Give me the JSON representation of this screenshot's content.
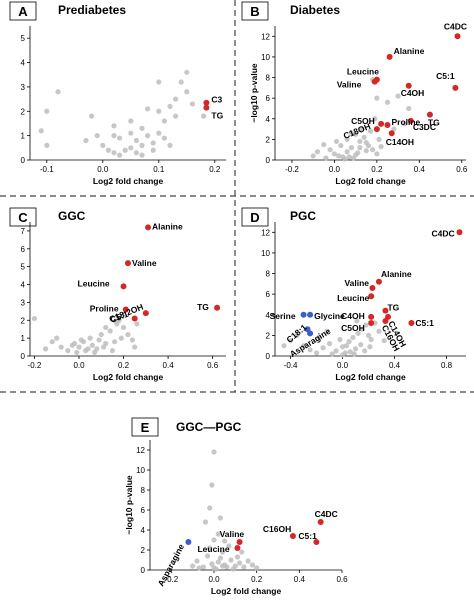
{
  "chart_data": [
    {
      "letter": "A",
      "title": "Prediabetes",
      "type": "scatter",
      "xlabel": "Log2 fold change",
      "xticks": [
        -0.1,
        0.0,
        0.1,
        0.2
      ],
      "yticks": [
        0,
        1,
        2,
        3,
        4,
        5
      ],
      "xlim": [
        -0.13,
        0.22
      ],
      "ylim": [
        0,
        5.5
      ],
      "colors": {
        "background": "#bdbdbd",
        "up": "#d62728"
      },
      "background_points": [
        [
          -0.08,
          2.8
        ],
        [
          -0.1,
          2.0
        ],
        [
          -0.11,
          1.2
        ],
        [
          -0.1,
          0.6
        ],
        [
          -0.02,
          1.8
        ],
        [
          0.02,
          1.4
        ],
        [
          -0.03,
          0.8
        ],
        [
          0.0,
          0.6
        ],
        [
          0.01,
          0.4
        ],
        [
          0.02,
          0.3
        ],
        [
          0.03,
          0.2
        ],
        [
          0.04,
          0.4
        ],
        [
          0.05,
          0.5
        ],
        [
          0.06,
          0.3
        ],
        [
          0.07,
          0.6
        ],
        [
          0.03,
          0.9
        ],
        [
          0.05,
          1.1
        ],
        [
          0.06,
          0.8
        ],
        [
          0.07,
          1.3
        ],
        [
          0.08,
          1.0
        ],
        [
          0.09,
          0.7
        ],
        [
          0.1,
          1.1
        ],
        [
          0.11,
          1.6
        ],
        [
          0.1,
          2.0
        ],
        [
          0.12,
          2.2
        ],
        [
          0.13,
          2.5
        ],
        [
          0.14,
          3.2
        ],
        [
          0.15,
          2.8
        ],
        [
          0.16,
          2.3
        ],
        [
          0.12,
          0.6
        ],
        [
          0.1,
          3.2
        ],
        [
          0.02,
          1.0
        ],
        [
          -0.01,
          1.0
        ],
        [
          0.05,
          1.6
        ],
        [
          0.08,
          2.1
        ],
        [
          0.13,
          1.8
        ],
        [
          0.11,
          0.9
        ],
        [
          0.07,
          0.2
        ],
        [
          0.09,
          0.4
        ],
        [
          0.15,
          3.6
        ],
        [
          0.18,
          1.8
        ]
      ],
      "highlights": [
        {
          "label": "C3",
          "x": 0.185,
          "y": 2.35,
          "color": "up"
        },
        {
          "label": "TG",
          "x": 0.185,
          "y": 2.15,
          "color": "up"
        }
      ]
    },
    {
      "letter": "B",
      "title": "Diabetes",
      "type": "scatter",
      "xlabel": "Log2 fold change",
      "ylabel": "−log10 p-value",
      "xticks": [
        -0.2,
        0.0,
        0.2,
        0.4,
        0.6
      ],
      "yticks": [
        0,
        2,
        4,
        6,
        8,
        10,
        12
      ],
      "xlim": [
        -0.28,
        0.62
      ],
      "ylim": [
        0,
        13
      ],
      "colors": {
        "background": "#bdbdbd",
        "up": "#d62728"
      },
      "background_points": [
        [
          -0.05,
          1.5
        ],
        [
          -0.02,
          1.0
        ],
        [
          0.0,
          0.6
        ],
        [
          0.02,
          0.4
        ],
        [
          0.04,
          0.3
        ],
        [
          0.06,
          0.8
        ],
        [
          0.08,
          1.2
        ],
        [
          0.1,
          0.5
        ],
        [
          0.12,
          1.8
        ],
        [
          0.14,
          2.2
        ],
        [
          0.1,
          2.5
        ],
        [
          0.06,
          2.0
        ],
        [
          0.03,
          1.4
        ],
        [
          0.15,
          0.9
        ],
        [
          0.16,
          1.4
        ],
        [
          0.18,
          1.0
        ],
        [
          0.2,
          0.6
        ],
        [
          0.22,
          1.3
        ],
        [
          0.13,
          3.0
        ],
        [
          0.2,
          6.0
        ],
        [
          0.25,
          5.6
        ],
        [
          0.3,
          6.2
        ],
        [
          0.35,
          5.0
        ],
        [
          0.28,
          3.0
        ],
        [
          0.05,
          0.1
        ],
        [
          0.07,
          0.3
        ],
        [
          0.09,
          0.2
        ],
        [
          0.11,
          0.7
        ],
        [
          -0.1,
          0.4
        ],
        [
          -0.08,
          0.8
        ],
        [
          0.17,
          2.8
        ],
        [
          0.21,
          2.0
        ],
        [
          0.19,
          4.0
        ],
        [
          0.12,
          1.2
        ],
        [
          0.01,
          1.8
        ],
        [
          0.15,
          1.7
        ],
        [
          0.33,
          3.5
        ],
        [
          0.18,
          7.8
        ],
        [
          0.08,
          2.6
        ],
        [
          -0.04,
          0.2
        ]
      ],
      "highlights": [
        {
          "label": "C4DC",
          "x": 0.58,
          "y": 12.0,
          "color": "up"
        },
        {
          "label": "Alanine",
          "x": 0.26,
          "y": 10.0,
          "color": "up"
        },
        {
          "label": "C5:1",
          "x": 0.57,
          "y": 7.0,
          "color": "up"
        },
        {
          "label": "Leucine",
          "x": 0.2,
          "y": 7.8,
          "color": "up"
        },
        {
          "label": "Valine",
          "x": 0.19,
          "y": 7.6,
          "color": "up"
        },
        {
          "label": "C4OH",
          "x": 0.35,
          "y": 7.2,
          "color": "up"
        },
        {
          "label": "TG",
          "x": 0.45,
          "y": 4.4,
          "color": "up"
        },
        {
          "label": "C3DC",
          "x": 0.36,
          "y": 3.8,
          "color": "up"
        },
        {
          "label": "C5OH",
          "x": 0.22,
          "y": 3.5,
          "color": "up"
        },
        {
          "label": "Proline",
          "x": 0.25,
          "y": 3.4,
          "color": "up"
        },
        {
          "label": "C18OH",
          "x": 0.2,
          "y": 3.0,
          "color": "up"
        },
        {
          "label": "C14OH",
          "x": 0.27,
          "y": 2.6,
          "color": "up"
        }
      ]
    },
    {
      "letter": "C",
      "title": "GGC",
      "type": "scatter",
      "xlabel": "Log2 fold change",
      "xticks": [
        -0.2,
        0.0,
        0.2,
        0.4,
        0.6
      ],
      "yticks": [
        0,
        1,
        2,
        3,
        4,
        5,
        6,
        7
      ],
      "xlim": [
        -0.22,
        0.66
      ],
      "ylim": [
        0,
        7.5
      ],
      "colors": {
        "background": "#bdbdbd",
        "up": "#d62728"
      },
      "background_points": [
        [
          -0.15,
          0.4
        ],
        [
          -0.12,
          0.8
        ],
        [
          -0.1,
          1.0
        ],
        [
          -0.08,
          0.5
        ],
        [
          -0.05,
          0.3
        ],
        [
          -0.03,
          0.6
        ],
        [
          -0.01,
          0.2
        ],
        [
          0.0,
          0.5
        ],
        [
          0.02,
          0.8
        ],
        [
          0.03,
          0.3
        ],
        [
          0.05,
          1.0
        ],
        [
          0.06,
          0.6
        ],
        [
          0.08,
          0.4
        ],
        [
          0.1,
          1.2
        ],
        [
          0.12,
          0.7
        ],
        [
          0.14,
          1.4
        ],
        [
          0.15,
          0.3
        ],
        [
          0.17,
          1.8
        ],
        [
          0.18,
          2.0
        ],
        [
          0.2,
          1.6
        ],
        [
          0.22,
          1.2
        ],
        [
          0.24,
          0.9
        ],
        [
          0.26,
          1.8
        ],
        [
          0.12,
          1.6
        ],
        [
          0.09,
          0.9
        ],
        [
          0.04,
          0.4
        ],
        [
          0.01,
          0.9
        ],
        [
          -0.02,
          0.7
        ],
        [
          0.07,
          0.2
        ],
        [
          0.11,
          0.5
        ],
        [
          -0.2,
          2.1
        ],
        [
          0.25,
          0.5
        ],
        [
          0.16,
          0.8
        ],
        [
          0.19,
          1.0
        ]
      ],
      "highlights": [
        {
          "label": "Alanine",
          "x": 0.31,
          "y": 7.2,
          "color": "up"
        },
        {
          "label": "Valine",
          "x": 0.22,
          "y": 5.2,
          "color": "up"
        },
        {
          "label": "Leucine",
          "x": 0.2,
          "y": 3.9,
          "color": "up"
        },
        {
          "label": "Proline",
          "x": 0.21,
          "y": 2.6,
          "color": "up"
        },
        {
          "label": "C5:1",
          "x": 0.3,
          "y": 2.4,
          "color": "up"
        },
        {
          "label": "C18:2OH",
          "x": 0.25,
          "y": 2.1,
          "color": "up"
        },
        {
          "label": "TG",
          "x": 0.62,
          "y": 2.7,
          "color": "up"
        }
      ]
    },
    {
      "letter": "D",
      "title": "PGC",
      "type": "scatter",
      "xlabel": "Log2 fold change",
      "xticks": [
        -0.4,
        0.0,
        0.4,
        0.8
      ],
      "yticks": [
        0,
        2,
        4,
        6,
        8,
        10,
        12
      ],
      "xlim": [
        -0.52,
        0.95
      ],
      "ylim": [
        0,
        13
      ],
      "colors": {
        "background": "#bdbdbd",
        "up": "#d62728",
        "down": "#3a5fcd"
      },
      "background_points": [
        [
          -0.3,
          1.0
        ],
        [
          -0.25,
          0.6
        ],
        [
          -0.2,
          0.3
        ],
        [
          -0.15,
          0.8
        ],
        [
          -0.1,
          1.2
        ],
        [
          -0.05,
          0.5
        ],
        [
          0.0,
          0.9
        ],
        [
          0.02,
          0.3
        ],
        [
          0.05,
          1.4
        ],
        [
          0.08,
          1.8
        ],
        [
          0.1,
          0.7
        ],
        [
          0.12,
          2.2
        ],
        [
          0.15,
          2.6
        ],
        [
          0.18,
          3.0
        ],
        [
          0.2,
          2.0
        ],
        [
          0.22,
          1.6
        ],
        [
          0.25,
          3.2
        ],
        [
          0.28,
          2.4
        ],
        [
          -0.35,
          2.0
        ],
        [
          -0.4,
          1.5
        ],
        [
          -0.45,
          1.0
        ],
        [
          0.06,
          0.4
        ],
        [
          0.03,
          1.0
        ],
        [
          -0.02,
          1.6
        ],
        [
          -0.08,
          0.2
        ],
        [
          0.14,
          1.1
        ],
        [
          0.17,
          0.5
        ],
        [
          0.21,
          0.9
        ],
        [
          -0.12,
          2.4
        ],
        [
          0.11,
          3.4
        ],
        [
          0.32,
          1.5
        ],
        [
          0.0,
          0.1
        ],
        [
          0.09,
          0.2
        ],
        [
          -0.18,
          1.8
        ]
      ],
      "highlights": [
        {
          "label": "C4DC",
          "x": 0.9,
          "y": 12.0,
          "color": "up"
        },
        {
          "label": "Alanine",
          "x": 0.28,
          "y": 7.2,
          "color": "up"
        },
        {
          "label": "Valine",
          "x": 0.23,
          "y": 6.6,
          "color": "up"
        },
        {
          "label": "Leucine",
          "x": 0.22,
          "y": 5.8,
          "color": "up"
        },
        {
          "label": "TG",
          "x": 0.33,
          "y": 4.4,
          "color": "up"
        },
        {
          "label": "C4OH",
          "x": 0.22,
          "y": 3.8,
          "color": "up"
        },
        {
          "label": "C5OH",
          "x": 0.22,
          "y": 3.2,
          "color": "up"
        },
        {
          "label": "C14OH",
          "x": 0.35,
          "y": 3.8,
          "color": "up"
        },
        {
          "label": "C16OH",
          "x": 0.33,
          "y": 3.4,
          "color": "up"
        },
        {
          "label": "C5:1",
          "x": 0.53,
          "y": 3.2,
          "color": "up"
        },
        {
          "label": "Serine",
          "x": -0.3,
          "y": 4.0,
          "color": "down"
        },
        {
          "label": "Glycine",
          "x": -0.25,
          "y": 4.0,
          "color": "down"
        },
        {
          "label": "C18:1",
          "x": -0.27,
          "y": 2.6,
          "color": "down"
        },
        {
          "label": "Asparagine",
          "x": -0.25,
          "y": 2.2,
          "color": "down"
        }
      ]
    },
    {
      "letter": "E",
      "title": "GGC—PGC",
      "type": "scatter",
      "xlabel": "Log2 fold change",
      "ylabel": "−log10 p-value",
      "xticks": [
        -0.2,
        0.0,
        0.2,
        0.4,
        0.6
      ],
      "yticks": [
        0,
        2,
        4,
        6,
        8,
        10,
        12
      ],
      "xlim": [
        -0.3,
        0.6
      ],
      "ylim": [
        0,
        13
      ],
      "colors": {
        "background": "#bdbdbd",
        "up": "#d62728",
        "down": "#3a5fcd"
      },
      "background_points": [
        [
          -0.1,
          0.4
        ],
        [
          -0.08,
          0.9
        ],
        [
          -0.05,
          0.3
        ],
        [
          -0.03,
          1.4
        ],
        [
          -0.01,
          0.6
        ],
        [
          0.0,
          0.2
        ],
        [
          0.02,
          0.8
        ],
        [
          0.03,
          1.2
        ],
        [
          0.05,
          0.5
        ],
        [
          0.06,
          0.3
        ],
        [
          0.08,
          1.0
        ],
        [
          0.1,
          0.4
        ],
        [
          0.12,
          0.7
        ],
        [
          0.14,
          0.3
        ],
        [
          0.16,
          0.9
        ],
        [
          0.18,
          0.5
        ],
        [
          0.2,
          0.2
        ],
        [
          -0.02,
          2.2
        ],
        [
          0.0,
          3.0
        ],
        [
          0.04,
          1.8
        ],
        [
          0.07,
          2.4
        ],
        [
          -0.04,
          4.8
        ],
        [
          -0.02,
          6.2
        ],
        [
          0.0,
          11.8
        ],
        [
          -0.01,
          8.5
        ],
        [
          0.02,
          3.6
        ],
        [
          0.01,
          0.1
        ],
        [
          0.04,
          0.4
        ],
        [
          0.09,
          0.1
        ],
        [
          0.11,
          1.3
        ],
        [
          -0.07,
          0.2
        ],
        [
          0.13,
          1.8
        ],
        [
          0.05,
          2.9
        ],
        [
          0.03,
          5.2
        ]
      ],
      "highlights": [
        {
          "label": "C4DC",
          "x": 0.5,
          "y": 4.8,
          "color": "up"
        },
        {
          "label": "C16OH",
          "x": 0.37,
          "y": 3.4,
          "color": "up"
        },
        {
          "label": "C5:1",
          "x": 0.48,
          "y": 2.8,
          "color": "up"
        },
        {
          "label": "Valine",
          "x": 0.12,
          "y": 2.8,
          "color": "up"
        },
        {
          "label": "Leucine",
          "x": 0.11,
          "y": 2.2,
          "color": "up"
        },
        {
          "label": "Asparagine",
          "x": -0.12,
          "y": 2.8,
          "color": "down"
        }
      ]
    }
  ]
}
